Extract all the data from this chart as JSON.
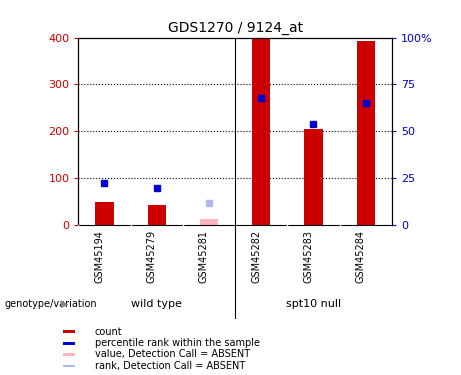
{
  "title": "GDS1270 / 9124_at",
  "samples": [
    "GSM45194",
    "GSM45279",
    "GSM45281",
    "GSM45282",
    "GSM45283",
    "GSM45284"
  ],
  "bar_values": [
    50,
    42,
    null,
    400,
    205,
    392
  ],
  "bar_values_absent": [
    null,
    null,
    12,
    null,
    null,
    null
  ],
  "rank_values_left": [
    90,
    80,
    null,
    270,
    215,
    260
  ],
  "rank_values_absent_left": [
    null,
    null,
    48,
    null,
    null,
    null
  ],
  "ylim_left": [
    0,
    400
  ],
  "ylim_right": [
    0,
    100
  ],
  "yticks_left": [
    0,
    100,
    200,
    300,
    400
  ],
  "yticks_right": [
    0,
    25,
    50,
    75,
    100
  ],
  "ytick_labels_right": [
    "0",
    "25",
    "50",
    "75",
    "100%"
  ],
  "left_color": "#cc0000",
  "right_color": "#0000cc",
  "bar_width": 0.35,
  "legend_items": [
    {
      "label": "count",
      "color": "#cc0000"
    },
    {
      "label": "percentile rank within the sample",
      "color": "#0000cc"
    },
    {
      "label": "value, Detection Call = ABSENT",
      "color": "#ffb6c1"
    },
    {
      "label": "rank, Detection Call = ABSENT",
      "color": "#b0b8f0"
    }
  ],
  "group1_label": "wild type",
  "group2_label": "spt10 null",
  "genotype_label": "genotype/variation",
  "group_color": "#90EE90",
  "tick_area_color": "#c8c8c8",
  "background_color": "#ffffff"
}
